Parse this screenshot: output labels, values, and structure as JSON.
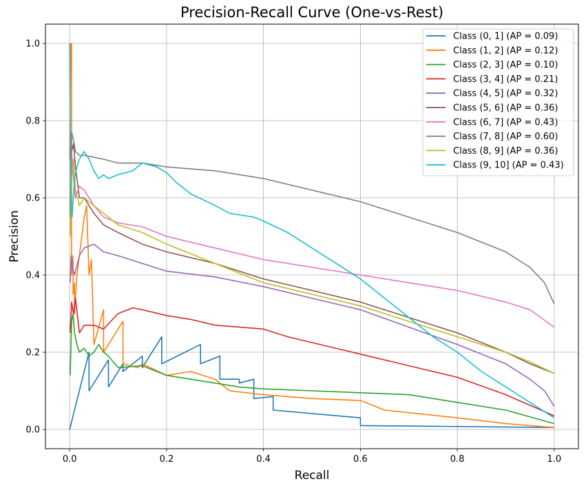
{
  "chart_data": {
    "type": "line",
    "title": "Precision-Recall Curve (One-vs-Rest)",
    "xlabel": "Recall",
    "ylabel": "Precision",
    "xlim": [
      -0.05,
      1.05
    ],
    "ylim": [
      -0.05,
      1.05
    ],
    "xticks": [
      "0.0",
      "0.2",
      "0.4",
      "0.6",
      "0.8",
      "1.0"
    ],
    "yticks": [
      "0.0",
      "0.2",
      "0.4",
      "0.6",
      "0.8",
      "1.0"
    ],
    "grid": true,
    "legend_position": "top-right",
    "series": [
      {
        "name": "Class (0, 1] (AP = 0.09)",
        "color": "#1f77b4",
        "x": [
          0,
          0.0,
          0.04,
          0.04,
          0.08,
          0.08,
          0.11,
          0.11,
          0.15,
          0.15,
          0.19,
          0.19,
          0.27,
          0.27,
          0.31,
          0.31,
          0.35,
          0.35,
          0.38,
          0.38,
          0.42,
          0.42,
          0.6,
          0.6,
          1.0
        ],
        "y": [
          0,
          0,
          0.2,
          0.1,
          0.18,
          0.11,
          0.17,
          0.15,
          0.19,
          0.16,
          0.24,
          0.17,
          0.22,
          0.17,
          0.19,
          0.13,
          0.13,
          0.12,
          0.13,
          0.08,
          0.085,
          0.05,
          0.03,
          0.01,
          0.005
        ]
      },
      {
        "name": "Class (1, 2] (AP = 0.12)",
        "color": "#ff7f0e",
        "x": [
          0.0,
          0.002,
          0.004,
          0.004,
          0.007,
          0.007,
          0.01,
          0.01,
          0.015,
          0.025,
          0.03,
          0.035,
          0.04,
          0.045,
          0.05,
          0.07,
          0.07,
          0.11,
          0.11,
          0.14,
          0.15,
          0.2,
          0.25,
          0.3,
          0.33,
          0.4,
          0.5,
          0.6,
          0.65,
          0.8,
          0.9,
          1.0
        ],
        "y": [
          0.7,
          1.0,
          1.0,
          0.4,
          0.45,
          0.35,
          0.38,
          0.3,
          0.4,
          0.5,
          0.55,
          0.58,
          0.4,
          0.44,
          0.22,
          0.31,
          0.2,
          0.28,
          0.17,
          0.16,
          0.17,
          0.14,
          0.15,
          0.13,
          0.1,
          0.09,
          0.08,
          0.075,
          0.05,
          0.03,
          0.015,
          0.005
        ]
      },
      {
        "name": "Class (2, 3] (AP = 0.10)",
        "color": "#2ca02c",
        "x": [
          0.001,
          0.004,
          0.007,
          0.01,
          0.015,
          0.02,
          0.03,
          0.04,
          0.05,
          0.06,
          0.07,
          0.08,
          0.1,
          0.15,
          0.2,
          0.25,
          0.3,
          0.35,
          0.4,
          0.5,
          0.6,
          0.7,
          0.8,
          0.9,
          1.0
        ],
        "y": [
          0.14,
          0.28,
          0.3,
          0.25,
          0.22,
          0.2,
          0.21,
          0.19,
          0.2,
          0.22,
          0.2,
          0.19,
          0.16,
          0.165,
          0.14,
          0.13,
          0.12,
          0.11,
          0.105,
          0.1,
          0.095,
          0.09,
          0.07,
          0.05,
          0.015
        ]
      },
      {
        "name": "Class (3, 4] (AP = 0.21)",
        "color": "#d62728",
        "x": [
          0.001,
          0.004,
          0.008,
          0.012,
          0.02,
          0.03,
          0.05,
          0.07,
          0.1,
          0.13,
          0.15,
          0.2,
          0.25,
          0.3,
          0.35,
          0.4,
          0.45,
          0.5,
          0.55,
          0.6,
          0.7,
          0.8,
          0.9,
          1.0
        ],
        "y": [
          0.25,
          0.33,
          0.3,
          0.34,
          0.25,
          0.27,
          0.27,
          0.26,
          0.3,
          0.315,
          0.31,
          0.295,
          0.285,
          0.27,
          0.265,
          0.26,
          0.24,
          0.225,
          0.21,
          0.195,
          0.165,
          0.135,
          0.09,
          0.035
        ]
      },
      {
        "name": "Class (4, 5] (AP = 0.32)",
        "color": "#9467bd",
        "x": [
          0.001,
          0.003,
          0.006,
          0.01,
          0.02,
          0.03,
          0.05,
          0.07,
          0.1,
          0.15,
          0.2,
          0.3,
          0.4,
          0.5,
          0.6,
          0.7,
          0.8,
          0.9,
          0.95,
          0.98,
          1.0
        ],
        "y": [
          0.38,
          0.45,
          0.42,
          0.4,
          0.45,
          0.47,
          0.48,
          0.46,
          0.45,
          0.43,
          0.41,
          0.395,
          0.37,
          0.34,
          0.31,
          0.265,
          0.22,
          0.17,
          0.13,
          0.1,
          0.06
        ]
      },
      {
        "name": "Class (5, 6] (AP = 0.36)",
        "color": "#8c564b",
        "x": [
          0.001,
          0.004,
          0.008,
          0.012,
          0.02,
          0.03,
          0.05,
          0.07,
          0.1,
          0.15,
          0.2,
          0.3,
          0.4,
          0.5,
          0.6,
          0.7,
          0.8,
          0.9,
          0.95,
          1.0
        ],
        "y": [
          0.55,
          0.72,
          0.74,
          0.68,
          0.6,
          0.6,
          0.56,
          0.53,
          0.51,
          0.48,
          0.46,
          0.43,
          0.39,
          0.36,
          0.33,
          0.29,
          0.25,
          0.2,
          0.17,
          0.145
        ]
      },
      {
        "name": "Class (6, 7] (AP = 0.43)",
        "color": "#e377c2",
        "x": [
          0.001,
          0.004,
          0.008,
          0.012,
          0.02,
          0.03,
          0.05,
          0.07,
          0.1,
          0.15,
          0.2,
          0.3,
          0.4,
          0.5,
          0.6,
          0.7,
          0.8,
          0.9,
          0.95,
          1.0
        ],
        "y": [
          0.6,
          0.72,
          0.65,
          0.6,
          0.63,
          0.62,
          0.58,
          0.55,
          0.535,
          0.525,
          0.5,
          0.47,
          0.44,
          0.42,
          0.4,
          0.38,
          0.36,
          0.33,
          0.31,
          0.265
        ]
      },
      {
        "name": "Class (7, 8] (AP = 0.60)",
        "color": "#7f7f7f",
        "x": [
          0.001,
          0.004,
          0.008,
          0.012,
          0.02,
          0.03,
          0.05,
          0.07,
          0.1,
          0.15,
          0.2,
          0.3,
          0.4,
          0.5,
          0.6,
          0.7,
          0.8,
          0.9,
          0.95,
          0.98,
          1.0
        ],
        "y": [
          0.6,
          0.77,
          0.75,
          0.72,
          0.71,
          0.71,
          0.705,
          0.7,
          0.69,
          0.69,
          0.68,
          0.67,
          0.65,
          0.62,
          0.59,
          0.55,
          0.51,
          0.46,
          0.42,
          0.38,
          0.325
        ]
      },
      {
        "name": "Class (8, 9] (AP = 0.36)",
        "color": "#bcbd22",
        "x": [
          0.001,
          0.004,
          0.008,
          0.012,
          0.02,
          0.03,
          0.05,
          0.07,
          0.1,
          0.15,
          0.2,
          0.3,
          0.4,
          0.5,
          0.6,
          0.7,
          0.8,
          0.9,
          0.95,
          1.0
        ],
        "y": [
          0.5,
          0.65,
          0.7,
          0.62,
          0.58,
          0.6,
          0.58,
          0.56,
          0.53,
          0.51,
          0.48,
          0.43,
          0.38,
          0.35,
          0.32,
          0.28,
          0.24,
          0.2,
          0.175,
          0.145
        ]
      },
      {
        "name": "Class (9, 10] (AP = 0.43)",
        "color": "#17becf",
        "x": [
          0.0,
          0.002,
          0.005,
          0.01,
          0.015,
          0.02,
          0.03,
          0.04,
          0.05,
          0.06,
          0.07,
          0.08,
          0.1,
          0.13,
          0.15,
          0.18,
          0.2,
          0.22,
          0.25,
          0.3,
          0.33,
          0.38,
          0.4,
          0.45,
          0.5,
          0.55,
          0.6,
          0.65,
          0.7,
          0.75,
          0.8,
          0.85,
          0.9,
          0.95,
          1.0
        ],
        "y": [
          1.0,
          0.6,
          0.55,
          0.65,
          0.68,
          0.7,
          0.72,
          0.7,
          0.67,
          0.65,
          0.66,
          0.65,
          0.66,
          0.67,
          0.69,
          0.68,
          0.665,
          0.64,
          0.61,
          0.58,
          0.56,
          0.55,
          0.54,
          0.51,
          0.47,
          0.43,
          0.39,
          0.34,
          0.29,
          0.24,
          0.2,
          0.15,
          0.11,
          0.07,
          0.03
        ]
      }
    ]
  }
}
